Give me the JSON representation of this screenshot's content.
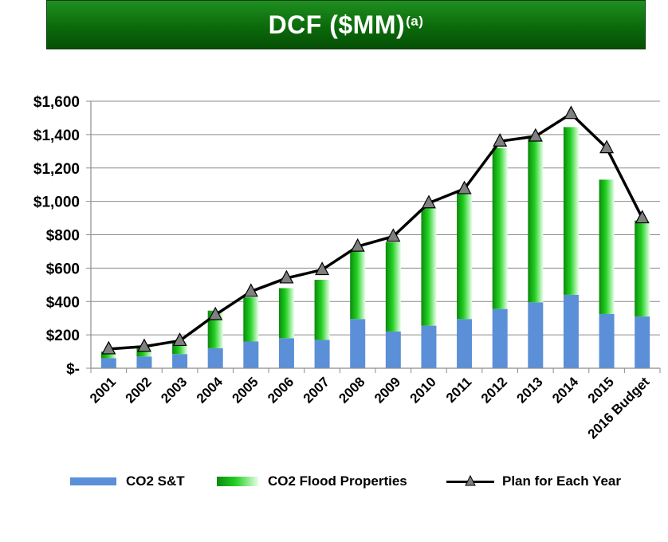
{
  "header": {
    "title": "DCF ($MM)",
    "superscript": "(a)"
  },
  "legend": {
    "s1": "CO2 S&T",
    "s2": "CO2 Flood Properties",
    "s3": "Plan for Each Year"
  },
  "colors": {
    "co2_st": "#5b8fd8",
    "co2_flood_dark": "#0c8a0c",
    "co2_flood_light": "#e8ffe8",
    "plan_line": "#000000",
    "plan_marker": "#808080",
    "title_bar": "#0b6a0b"
  },
  "chart_data": {
    "type": "bar",
    "stacked": true,
    "categories": [
      "2001",
      "2002",
      "2003",
      "2004",
      "2005",
      "2006",
      "2007",
      "2008",
      "2009",
      "2010",
      "2011",
      "2012",
      "2013",
      "2014",
      "2015",
      "2016 Budget"
    ],
    "series": [
      {
        "name": "CO2 S&T",
        "kind": "bar",
        "values": [
          60,
          70,
          85,
          120,
          160,
          180,
          170,
          295,
          220,
          255,
          295,
          355,
          395,
          440,
          325,
          310
        ]
      },
      {
        "name": "CO2 Flood Properties",
        "kind": "bar",
        "values": [
          40,
          50,
          75,
          225,
          265,
          300,
          360,
          405,
          535,
          705,
          755,
          965,
          985,
          1005,
          805,
          575
        ]
      },
      {
        "name": "Plan for Each Year",
        "kind": "line",
        "marker": "triangle",
        "values": [
          115,
          130,
          165,
          320,
          460,
          540,
          590,
          730,
          790,
          990,
          1075,
          1360,
          1390,
          1525,
          1320,
          900
        ]
      }
    ],
    "ylim": [
      0,
      1600
    ],
    "yticks": [
      0,
      200,
      400,
      600,
      800,
      1000,
      1200,
      1400,
      1600
    ],
    "ytick_labels": [
      "$-",
      "$200",
      "$400",
      "$600",
      "$800",
      "$1,000",
      "$1,200",
      "$1,400",
      "$1,600"
    ],
    "grid": "horizontal",
    "legend_position": "bottom"
  }
}
